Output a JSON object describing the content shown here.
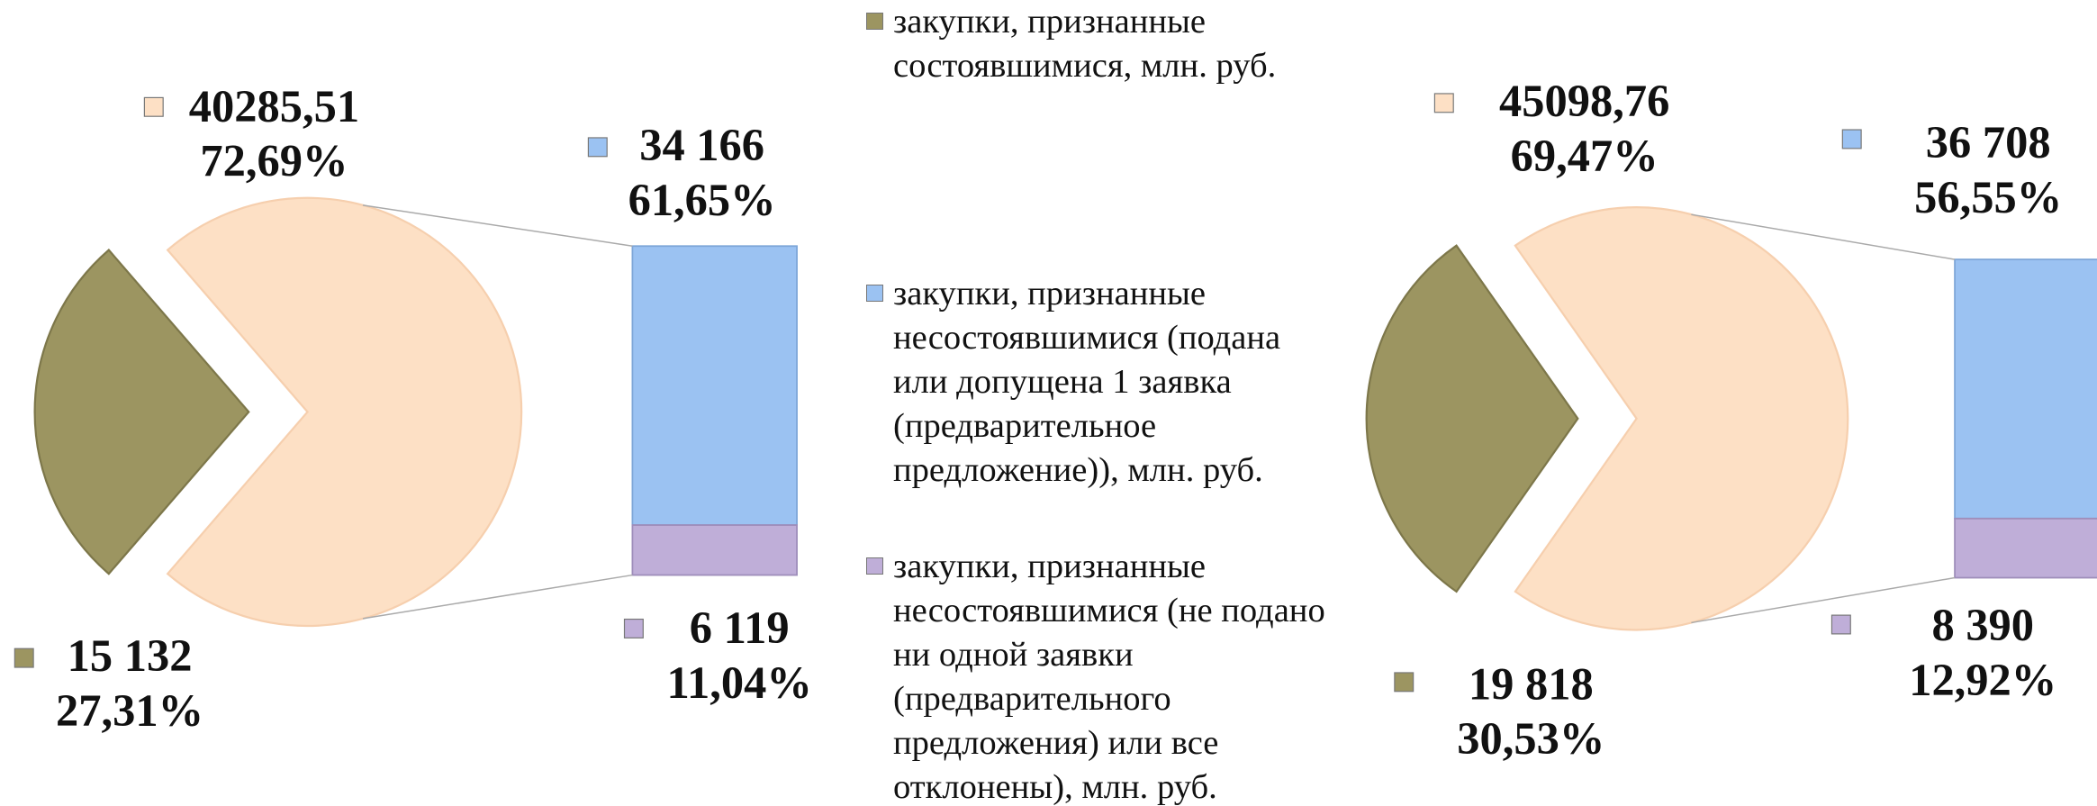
{
  "legend": [
    {
      "name": "закупки, признанные состоявшимися, млн. руб.",
      "color": "#9c9561"
    },
    {
      "name": "закупки, признанные несостоявшимися (подана или допущена 1 заявка (предварительное предложение)), млн. руб.",
      "color": "#9bc2f2"
    },
    {
      "name": "закупки, признанные несостоявшимися (не подано ни одной заявки (предварительного предложения) или все отклонены), млн. руб.",
      "color": "#bfaed8"
    }
  ],
  "chart_data": [
    {
      "type": "pie",
      "values": [
        40285.51,
        15132
      ],
      "value_labels": [
        "40285,51",
        "15 132"
      ],
      "percents": [
        72.69,
        27.31
      ],
      "percent_labels": [
        "72,69%",
        "27,31%"
      ],
      "colors": [
        "#fde0c5",
        "#9c9561"
      ],
      "bar": {
        "values": [
          34166,
          6119
        ],
        "value_labels": [
          "34 166",
          "6 119"
        ],
        "percents": [
          61.65,
          11.04
        ],
        "percent_labels": [
          "61,65%",
          "11,04%"
        ],
        "colors": [
          "#9bc2f2",
          "#bfaed8"
        ]
      }
    },
    {
      "type": "pie",
      "values": [
        45098.76,
        19818
      ],
      "value_labels": [
        "45098,76",
        "19 818"
      ],
      "percents": [
        69.47,
        30.53
      ],
      "percent_labels": [
        "69,47%",
        "30,53%"
      ],
      "colors": [
        "#fde0c5",
        "#9c9561"
      ],
      "bar": {
        "values": [
          36708,
          8390
        ],
        "value_labels": [
          "36 708",
          "8 390"
        ],
        "percents": [
          56.55,
          12.92
        ],
        "percent_labels": [
          "56,55%",
          "12,92%"
        ],
        "colors": [
          "#9bc2f2",
          "#bfaed8"
        ]
      }
    }
  ]
}
